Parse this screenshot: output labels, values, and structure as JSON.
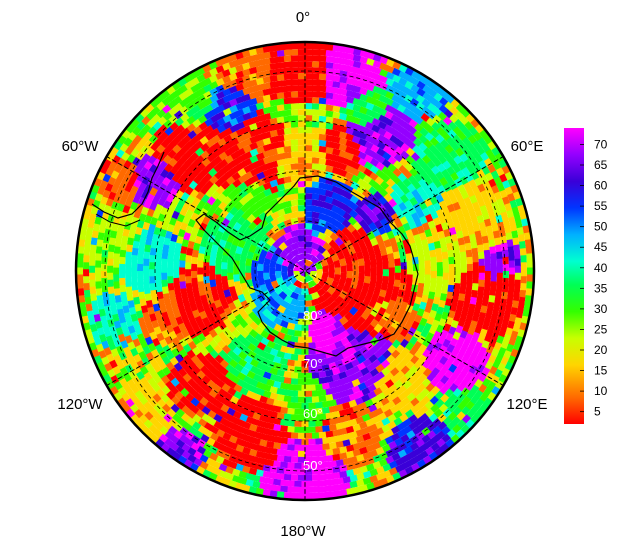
{
  "map": {
    "projection": "south-polar-stereographic",
    "longitude_labels": {
      "top": "0°",
      "upper_left": "60°W",
      "upper_right": "60°E",
      "lower_left": "120°W",
      "lower_right": "120°E",
      "bottom": "180°W"
    },
    "latitude_labels": [
      "80°",
      "70°",
      "60°",
      "50°"
    ],
    "gridline_style": "dashed",
    "coastline": "Antarctica and southern South America"
  },
  "colorbar": {
    "ticks": [
      "70",
      "65",
      "60",
      "55",
      "50",
      "45",
      "40",
      "35",
      "30",
      "25",
      "20",
      "15",
      "10",
      "5"
    ],
    "range": [
      2,
      74
    ],
    "colors": [
      "#ff0000",
      "#ff6a00",
      "#ffd500",
      "#c8ff00",
      "#33ff00",
      "#00ff55",
      "#00ffd0",
      "#00b0ff",
      "#0035ff",
      "#3a00d8",
      "#9400ff",
      "#ff00ff"
    ]
  }
}
